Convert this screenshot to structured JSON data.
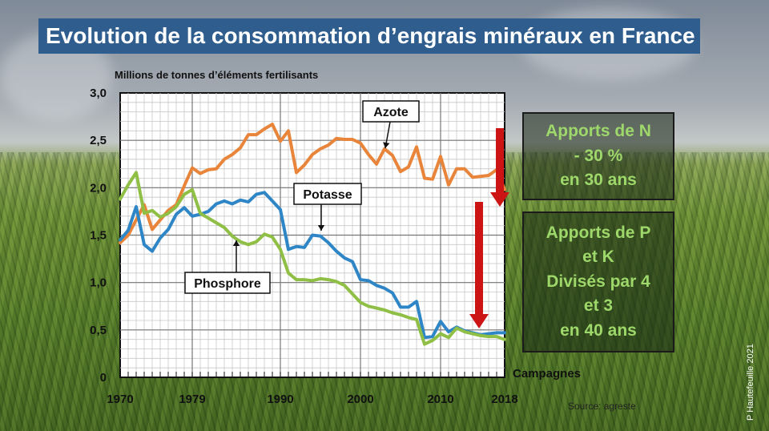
{
  "title": "Evolution de la consommation d’engrais minéraux en France",
  "unit_label": "Millions de tonnes d’éléments fertilisants",
  "source": "Source: agreste",
  "credit": "P Hautefeuille 2021",
  "colors": {
    "azote": "#e8853a",
    "potasse": "#2f86c6",
    "phosphore": "#8fbf45",
    "arrow": "#cc1414",
    "title_bg": "#2f5d8d",
    "box_text": "#9ed86a"
  },
  "box_n": {
    "line1": "Apports de N",
    "line2": "- 30 %",
    "line3": "en 30 ans"
  },
  "box_pk": {
    "line1": "Apports de P",
    "line2": "et K",
    "line3": "Divisés par 4",
    "line4": "et 3",
    "line5": "en 40 ans"
  },
  "chart_data": {
    "type": "line",
    "xlabel": "Campagnes",
    "ylabel": "Millions de tonnes d’éléments fertilisants",
    "xlim": [
      1970,
      2018
    ],
    "ylim": [
      0,
      3.0
    ],
    "x_tick_labels": [
      "1970",
      "1979",
      "1990",
      "2000",
      "2010",
      "2018"
    ],
    "y_tick_labels": [
      "0",
      "0,5",
      "1,0",
      "1,5",
      "2,0",
      "2,5",
      "3,0"
    ],
    "grid": true,
    "x": [
      1970,
      1971,
      1972,
      1973,
      1974,
      1975,
      1976,
      1977,
      1978,
      1979,
      1980,
      1981,
      1982,
      1983,
      1984,
      1985,
      1986,
      1987,
      1988,
      1989,
      1990,
      1991,
      1992,
      1993,
      1994,
      1995,
      1996,
      1997,
      1998,
      1999,
      2000,
      2001,
      2002,
      2003,
      2004,
      2005,
      2006,
      2007,
      2008,
      2009,
      2010,
      2011,
      2012,
      2013,
      2014,
      2015,
      2016,
      2017,
      2018
    ],
    "series": [
      {
        "name": "Azote",
        "values": [
          1.42,
          1.5,
          1.66,
          1.82,
          1.56,
          1.66,
          1.76,
          1.82,
          2.02,
          2.21,
          2.15,
          2.19,
          2.2,
          2.3,
          2.35,
          2.42,
          2.56,
          2.56,
          2.62,
          2.67,
          2.49,
          2.6,
          2.16,
          2.24,
          2.35,
          2.41,
          2.45,
          2.52,
          2.51,
          2.51,
          2.47,
          2.35,
          2.25,
          2.41,
          2.34,
          2.17,
          2.22,
          2.43,
          2.1,
          2.09,
          2.33,
          2.03,
          2.2,
          2.2,
          2.11,
          2.12,
          2.13,
          2.19,
          1.98
        ]
      },
      {
        "name": "Potasse",
        "values": [
          1.45,
          1.55,
          1.8,
          1.4,
          1.33,
          1.47,
          1.56,
          1.72,
          1.79,
          1.7,
          1.72,
          1.75,
          1.83,
          1.86,
          1.83,
          1.87,
          1.85,
          1.93,
          1.95,
          1.86,
          1.77,
          1.35,
          1.38,
          1.37,
          1.5,
          1.49,
          1.42,
          1.33,
          1.26,
          1.22,
          1.03,
          1.02,
          0.97,
          0.94,
          0.89,
          0.74,
          0.74,
          0.8,
          0.42,
          0.43,
          0.59,
          0.48,
          0.53,
          0.49,
          0.47,
          0.45,
          0.46,
          0.47,
          0.47
        ]
      },
      {
        "name": "Phosphore",
        "values": [
          1.88,
          2.03,
          2.16,
          1.73,
          1.76,
          1.69,
          1.73,
          1.8,
          1.93,
          1.98,
          1.73,
          1.68,
          1.63,
          1.58,
          1.49,
          1.43,
          1.4,
          1.43,
          1.51,
          1.48,
          1.35,
          1.1,
          1.03,
          1.03,
          1.02,
          1.04,
          1.03,
          1.01,
          0.97,
          0.88,
          0.79,
          0.75,
          0.73,
          0.71,
          0.68,
          0.66,
          0.63,
          0.61,
          0.35,
          0.39,
          0.46,
          0.42,
          0.52,
          0.48,
          0.46,
          0.44,
          0.43,
          0.43,
          0.4
        ]
      }
    ],
    "annotations": [
      "Azote",
      "Potasse",
      "Phosphore"
    ]
  }
}
